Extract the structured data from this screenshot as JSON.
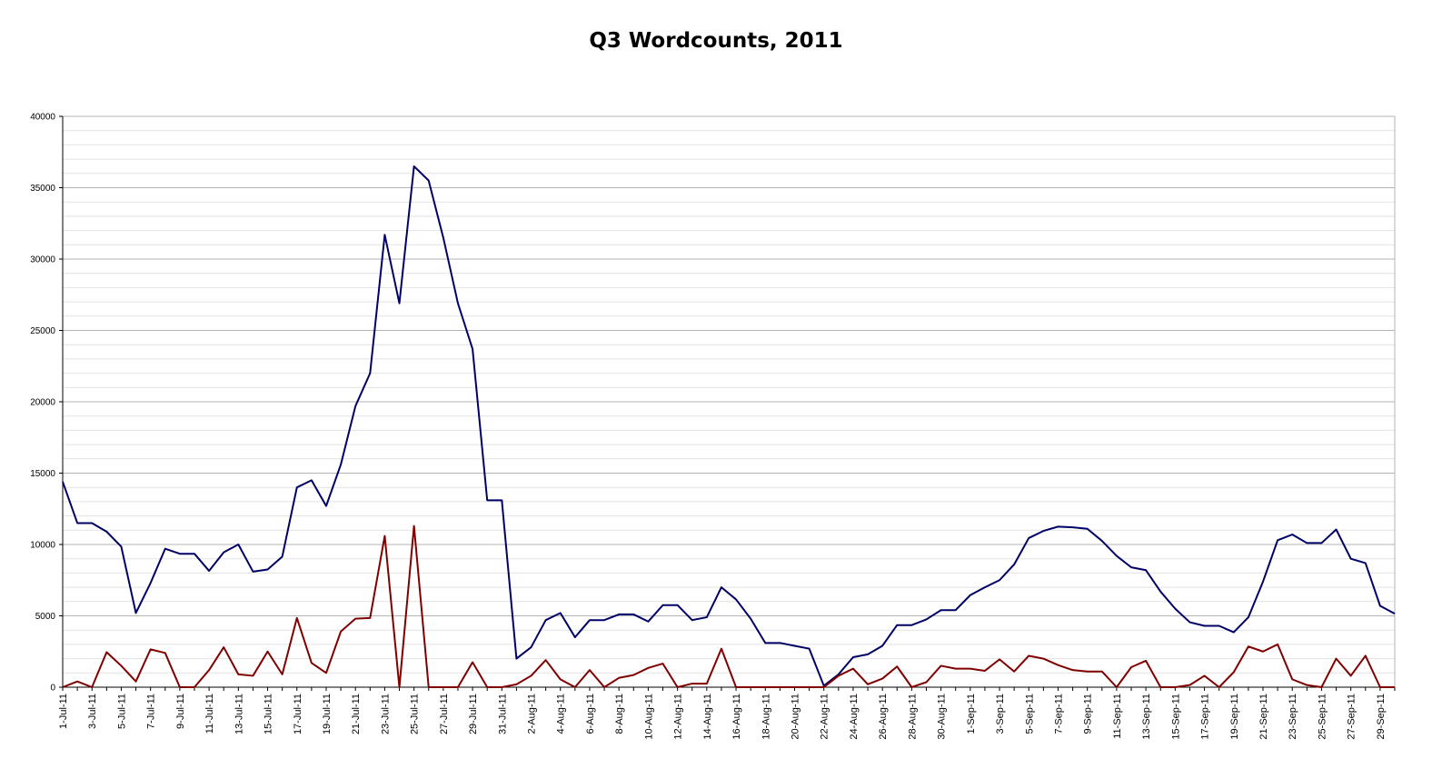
{
  "chart_data": {
    "type": "line",
    "title": "Q3 Wordcounts, 2011",
    "xlabel": "",
    "ylabel": "",
    "ylim": [
      0,
      40000
    ],
    "y_ticks": [
      "0",
      "5000",
      "10000",
      "15000",
      "20000",
      "25000",
      "30000",
      "35000",
      "40000"
    ],
    "grid": true,
    "categories": [
      "1-Jul-11",
      "2-Jul-11",
      "3-Jul-11",
      "4-Jul-11",
      "5-Jul-11",
      "6-Jul-11",
      "7-Jul-11",
      "8-Jul-11",
      "9-Jul-11",
      "10-Jul-11",
      "11-Jul-11",
      "12-Jul-11",
      "13-Jul-11",
      "14-Jul-11",
      "15-Jul-11",
      "16-Jul-11",
      "17-Jul-11",
      "18-Jul-11",
      "19-Jul-11",
      "20-Jul-11",
      "21-Jul-11",
      "22-Jul-11",
      "23-Jul-11",
      "24-Jul-11",
      "25-Jul-11",
      "26-Jul-11",
      "27-Jul-11",
      "28-Jul-11",
      "29-Jul-11",
      "30-Jul-11",
      "31-Jul-11",
      "1-Aug-11",
      "2-Aug-11",
      "3-Aug-11",
      "4-Aug-11",
      "5-Aug-11",
      "6-Aug-11",
      "7-Aug-11",
      "8-Aug-11",
      "9-Aug-11",
      "10-Aug-11",
      "11-Aug-11",
      "12-Aug-11",
      "13-Aug-11",
      "14-Aug-11",
      "15-Aug-11",
      "16-Aug-11",
      "17-Aug-11",
      "18-Aug-11",
      "19-Aug-11",
      "20-Aug-11",
      "21-Aug-11",
      "22-Aug-11",
      "23-Aug-11",
      "24-Aug-11",
      "25-Aug-11",
      "26-Aug-11",
      "27-Aug-11",
      "28-Aug-11",
      "29-Aug-11",
      "30-Aug-11",
      "31-Aug-11",
      "1-Sep-11",
      "2-Sep-11",
      "3-Sep-11",
      "4-Sep-11",
      "5-Sep-11",
      "6-Sep-11",
      "7-Sep-11",
      "8-Sep-11",
      "9-Sep-11",
      "10-Sep-11",
      "11-Sep-11",
      "12-Sep-11",
      "13-Sep-11",
      "14-Sep-11",
      "15-Sep-11",
      "16-Sep-11",
      "17-Sep-11",
      "18-Sep-11",
      "19-Sep-11",
      "20-Sep-11",
      "21-Sep-11",
      "22-Sep-11",
      "23-Sep-11",
      "24-Sep-11",
      "25-Sep-11",
      "26-Sep-11",
      "27-Sep-11",
      "28-Sep-11",
      "29-Sep-11",
      "30-Sep-11"
    ],
    "series": [
      {
        "color": "#000066",
        "values": [
          14400,
          11500,
          11500,
          10900,
          9850,
          5200,
          7300,
          9700,
          9350,
          9350,
          8150,
          9450,
          10000,
          8100,
          8250,
          9150,
          14000,
          14500,
          12700,
          15600,
          19700,
          22000,
          31700,
          26900,
          36500,
          35500,
          31500,
          26900,
          23700,
          13100,
          13100,
          2000,
          2800,
          4700,
          5200,
          3500,
          4700,
          4700,
          5100,
          5100,
          4600,
          5750,
          5750,
          4700,
          4900,
          7000,
          6150,
          4800,
          3100,
          3100,
          2900,
          2700,
          100,
          900,
          2100,
          2300,
          2900,
          4350,
          4350,
          4750,
          5400,
          5400,
          6450,
          7000,
          7500,
          8600,
          10450,
          10950,
          11250,
          11200,
          11100,
          10250,
          9200,
          8400,
          8200,
          6700,
          5500,
          4550,
          4300,
          4300,
          3850,
          4900,
          7400,
          10300,
          10700,
          10100,
          10100,
          11050,
          9000,
          8700,
          5700,
          5150
        ]
      },
      {
        "color": "#800000",
        "values": [
          0,
          400,
          0,
          2450,
          1500,
          400,
          2650,
          2400,
          0,
          0,
          1200,
          2800,
          900,
          800,
          2500,
          900,
          4850,
          1700,
          1000,
          3900,
          4800,
          4850,
          10600,
          0,
          11300,
          0,
          0,
          0,
          1750,
          0,
          0,
          200,
          800,
          1900,
          550,
          0,
          1200,
          0,
          650,
          850,
          1350,
          1650,
          0,
          250,
          250,
          2700,
          0,
          0,
          0,
          0,
          0,
          0,
          0,
          800,
          1300,
          200,
          600,
          1450,
          0,
          350,
          1500,
          1300,
          1300,
          1150,
          1950,
          1100,
          2200,
          2000,
          1550,
          1200,
          1100,
          1100,
          0,
          1400,
          1850,
          0,
          0,
          150,
          800,
          0,
          1050,
          2850,
          2500,
          3000,
          550,
          150,
          0,
          2000,
          800,
          2200,
          0,
          0
        ]
      }
    ]
  }
}
